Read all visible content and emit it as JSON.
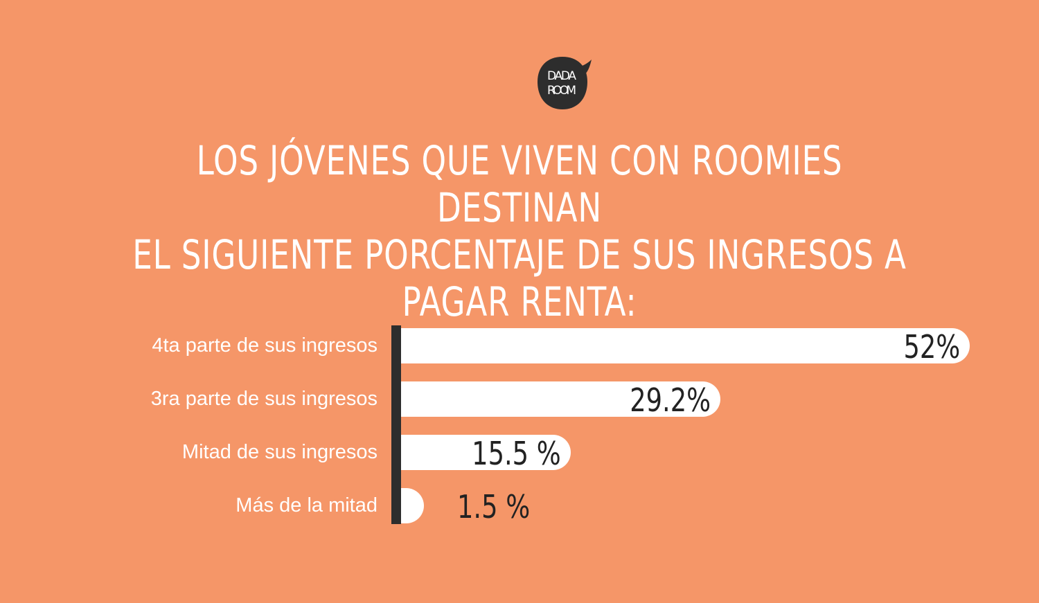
{
  "logo": {
    "text_line1": "DADA",
    "text_line2": "ROOM"
  },
  "colors": {
    "background": "#F59668",
    "bar": "#FFFFFF",
    "axis": "#2D2D2D",
    "text": "#FFFFFF",
    "value_text": "#222222"
  },
  "title": {
    "lines": [
      "Los jóvenes que viven con roomies destinan",
      "el siguiente porcentaje de sus ingresos a",
      "pagar renta:"
    ]
  },
  "chart_data": {
    "type": "bar",
    "orientation": "horizontal",
    "categories": [
      "4ta parte de sus ingresos",
      "3ra parte de sus ingresos",
      "Mitad de sus ingresos",
      "Más de la mitad"
    ],
    "values": [
      52,
      29.2,
      15.5,
      1.5
    ],
    "value_labels": [
      "52%",
      "29.2%",
      "15.5 %",
      "1.5 %"
    ],
    "unit": "%",
    "xlim": [
      0,
      52
    ],
    "grid": false,
    "legend": "none"
  }
}
